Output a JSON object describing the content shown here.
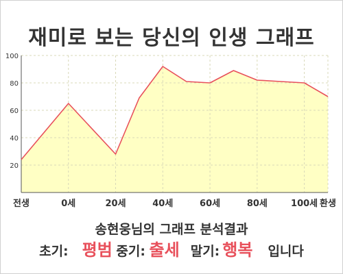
{
  "title": "재미로 보는 당신의 인생 그래프",
  "summary": {
    "heading": "송현웅님의 그래프 분석결과",
    "early_label": "초기:",
    "early_value": "평범",
    "mid_label": "중기:",
    "mid_value": "출세",
    "late_label": "말기:",
    "late_value": "행복",
    "ending": "입니다"
  },
  "colors": {
    "line": "#e8505b",
    "fill": "#ffffc4",
    "grid": "#d8d8b8",
    "accent": "#e8505b"
  },
  "chart_data": {
    "type": "area",
    "x_tick_labels": [
      "전생",
      "0세",
      "20세",
      "40세",
      "60세",
      "80세",
      "100세",
      "환생"
    ],
    "y_ticks": [
      20,
      40,
      60,
      80,
      100
    ],
    "ylim": [
      0,
      100
    ],
    "xlim": [
      -20,
      110
    ],
    "grid": true,
    "series": [
      {
        "x": [
          -20,
          0,
          20,
          30,
          40,
          50,
          60,
          70,
          80,
          90,
          100,
          110
        ],
        "values": [
          24,
          65,
          28,
          69,
          92,
          81,
          80,
          89,
          82,
          81,
          80,
          70
        ]
      }
    ]
  }
}
